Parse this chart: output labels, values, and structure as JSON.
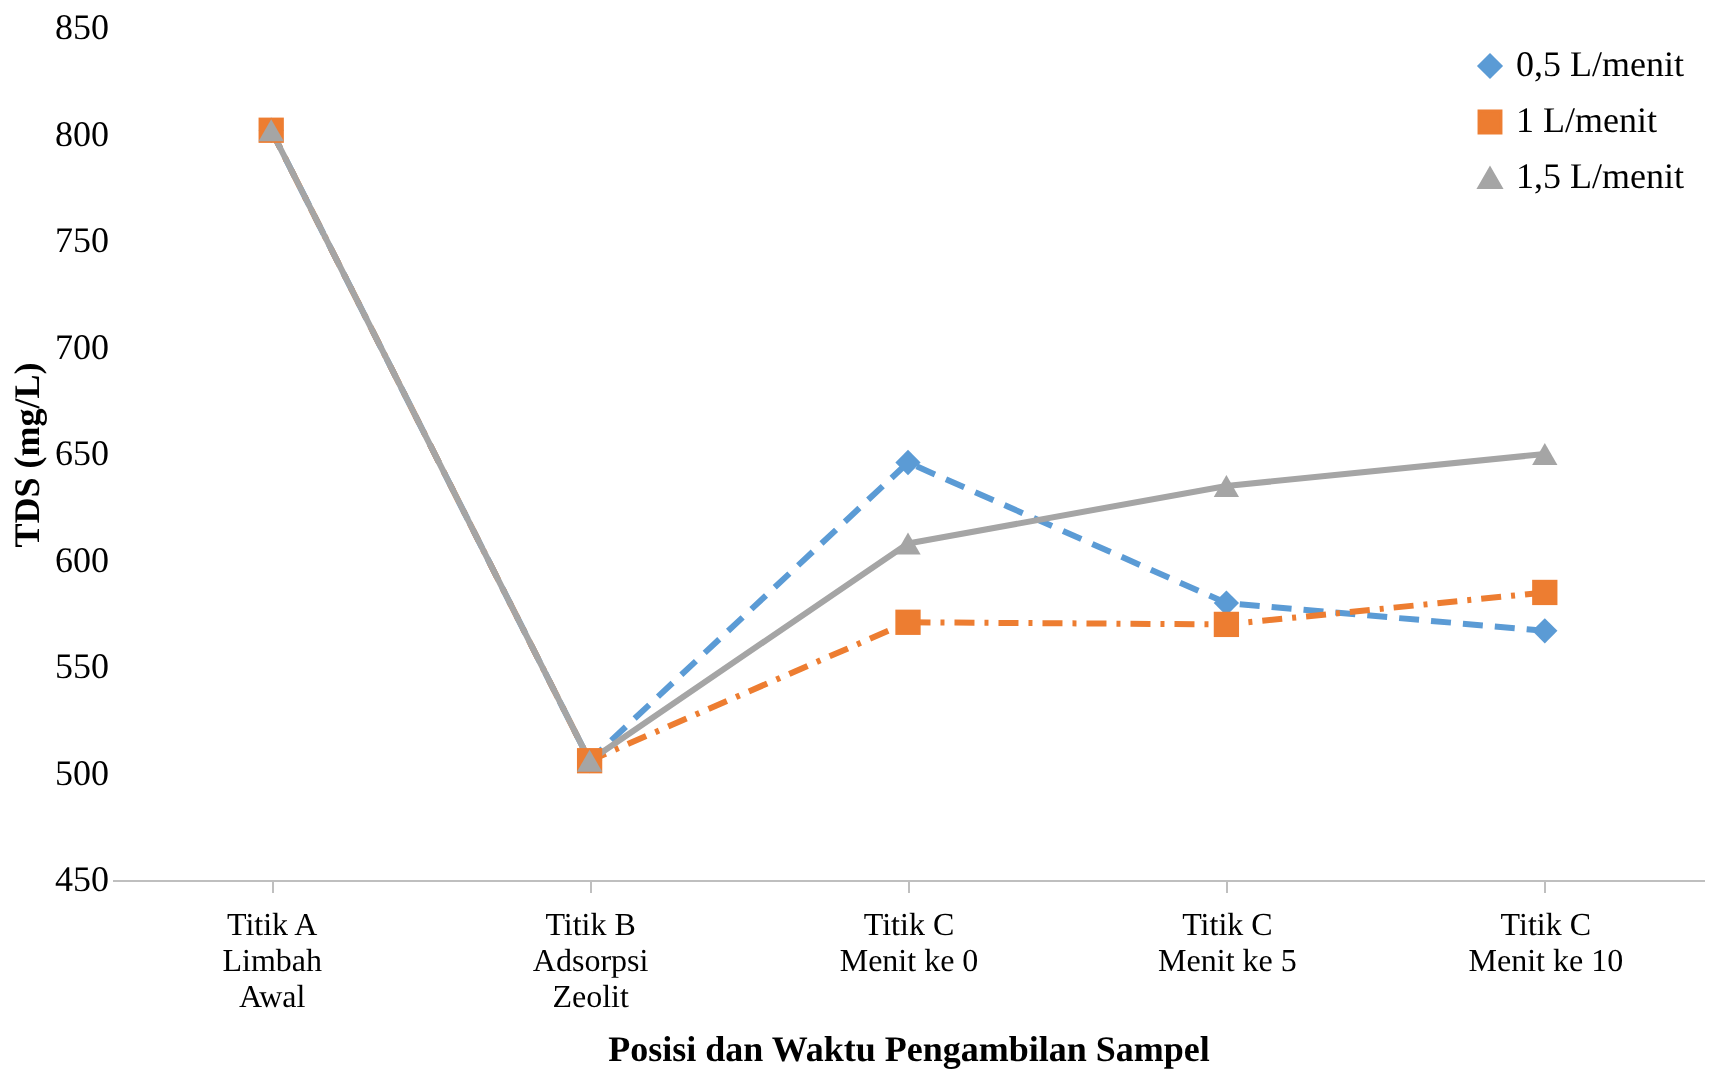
{
  "chart_data": {
    "type": "line",
    "xlabel": "Posisi dan Waktu Pengambilan Sampel",
    "ylabel": "TDS (mg/L)",
    "categories": [
      "Titik A\nLimbah\nAwal",
      "Titik B\nAdsorpsi\nZeolit",
      "Titik C\nMenit ke 0",
      "Titik C\nMenit ke 5",
      "Titik C\nMenit ke 10"
    ],
    "series": [
      {
        "name": "0,5 L/menit",
        "color": "#5b9bd5",
        "marker": "diamond",
        "line_style": "dashed",
        "values": [
          802,
          506,
          646,
          580,
          567
        ]
      },
      {
        "name": "1 L/menit",
        "color": "#ed7d31",
        "marker": "square",
        "line_style": "dashdot",
        "values": [
          802,
          506,
          571,
          570,
          585
        ]
      },
      {
        "name": "1,5 L/menit",
        "color": "#a5a5a5",
        "marker": "triangle",
        "line_style": "solid",
        "values": [
          802,
          506,
          608,
          635,
          650
        ]
      }
    ],
    "ylim": [
      450,
      850
    ],
    "yticks": [
      450,
      500,
      550,
      600,
      650,
      700,
      750,
      800,
      850
    ],
    "grid": false,
    "legend": "top right"
  }
}
